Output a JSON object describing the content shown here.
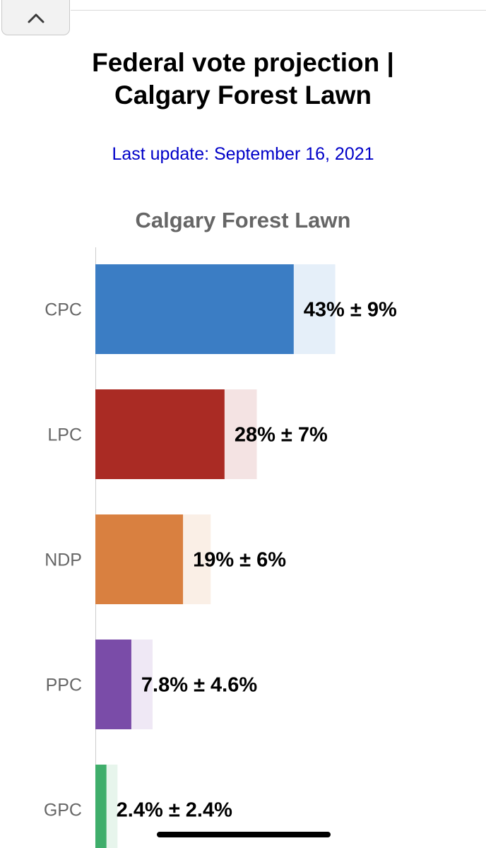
{
  "header": {
    "collapse_icon": "chevron-up-icon",
    "title_line1": "Federal vote projection |",
    "title_line2": "Calgary Forest Lawn",
    "last_update": "Last update: September 16, 2021"
  },
  "colors": {
    "title": "#000000",
    "update_link": "#0000c8",
    "chart_title": "#666666",
    "category_label": "#666666",
    "axis_line": "#cccccc"
  },
  "chart_data": {
    "type": "bar",
    "orientation": "horizontal",
    "title": "Calgary Forest Lawn",
    "xlabel": "",
    "ylabel": "",
    "xlim": [
      0,
      60
    ],
    "grid": false,
    "legend": "none",
    "categories": [
      "CPC",
      "LPC",
      "NDP",
      "PPC",
      "GPC"
    ],
    "series": [
      {
        "values": [
          43,
          28,
          19,
          7.8,
          2.4
        ],
        "margins": [
          9,
          7,
          6,
          4.6,
          2.4
        ],
        "labels": [
          "43% ± 9%",
          "28% ± 7%",
          "19% ± 6%",
          "7.8% ± 4.6%",
          "2.4% ± 2.4%"
        ],
        "colors": [
          "#3b7dc4",
          "#aa2b24",
          "#d98040",
          "#7a4ca8",
          "#3fae6b"
        ],
        "band_colors": [
          "#e5eff9",
          "#f4e3e3",
          "#faefe6",
          "#efe8f5",
          "#e7f5ec"
        ]
      }
    ]
  }
}
